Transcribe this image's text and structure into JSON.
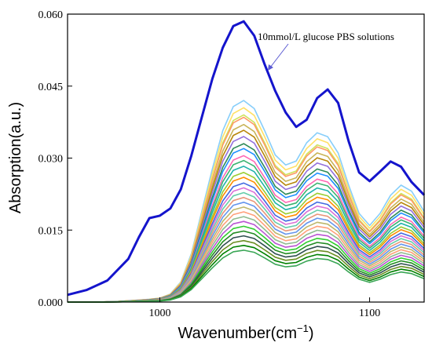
{
  "chart_data": {
    "type": "line",
    "title": "",
    "xlabel": "Wavenumber(cm",
    "xlabel_sup": "−1",
    "xlabel_close": ")",
    "ylabel": "Absorption(a.u.)",
    "xlim": [
      956,
      1126
    ],
    "ylim": [
      0,
      0.06
    ],
    "xticks": [
      1000,
      1100
    ],
    "yticks": [
      0.0,
      0.015,
      0.03,
      0.045,
      0.06
    ],
    "ytick_labels": [
      "0.000",
      "0.015",
      "0.030",
      "0.045",
      "0.060"
    ],
    "grid": false,
    "legend": "none",
    "annotation": {
      "text": "10mmol/L glucose PBS solutions",
      "points_to": [
        1040,
        0.0495
      ]
    },
    "reference_shape": {
      "x": [
        956,
        970,
        980,
        990,
        995,
        1000,
        1005,
        1010,
        1015,
        1020,
        1025,
        1030,
        1035,
        1040,
        1045,
        1050,
        1055,
        1060,
        1065,
        1070,
        1075,
        1080,
        1085,
        1090,
        1095,
        1100,
        1105,
        1110,
        1115,
        1120,
        1126
      ],
      "shape": [
        0.0,
        0.0,
        0.003,
        0.01,
        0.014,
        0.02,
        0.04,
        0.1,
        0.24,
        0.45,
        0.66,
        0.85,
        0.97,
        1.0,
        0.96,
        0.85,
        0.73,
        0.68,
        0.7,
        0.79,
        0.84,
        0.82,
        0.74,
        0.58,
        0.44,
        0.38,
        0.44,
        0.53,
        0.58,
        0.55,
        0.45
      ]
    },
    "series": [
      {
        "color": "#1414cc",
        "x": [
          956,
          965,
          975,
          985,
          990,
          995,
          1000,
          1005,
          1010,
          1015,
          1020,
          1025,
          1030,
          1035,
          1040,
          1045,
          1050,
          1055,
          1060,
          1065,
          1070,
          1075,
          1080,
          1085,
          1090,
          1095,
          1100,
          1105,
          1110,
          1115,
          1120,
          1126
        ],
        "values": [
          0.0015,
          0.0025,
          0.0045,
          0.009,
          0.0135,
          0.0175,
          0.018,
          0.0195,
          0.0235,
          0.0305,
          0.0385,
          0.0465,
          0.053,
          0.0575,
          0.0585,
          0.0555,
          0.0495,
          0.044,
          0.0395,
          0.0365,
          0.038,
          0.0425,
          0.0443,
          0.0415,
          0.0335,
          0.027,
          0.0252,
          0.0272,
          0.0293,
          0.0282,
          0.025,
          0.0223
        ]
      },
      {
        "color": "#87cefa",
        "peak": 0.042
      },
      {
        "color": "#ffe066",
        "peak": 0.0405
      },
      {
        "color": "#cfe35a",
        "peak": 0.039
      },
      {
        "color": "#ff9966",
        "peak": 0.0385
      },
      {
        "color": "#c9b458",
        "peak": 0.037
      },
      {
        "color": "#b8860b",
        "peak": 0.0358
      },
      {
        "color": "#9370db",
        "peak": 0.0345
      },
      {
        "color": "#2e8b57",
        "peak": 0.033
      },
      {
        "color": "#1e90ff",
        "peak": 0.032
      },
      {
        "color": "#ff69b4",
        "peak": 0.0305
      },
      {
        "color": "#3cb371",
        "peak": 0.0295
      },
      {
        "color": "#20b2aa",
        "peak": 0.0283
      },
      {
        "color": "#9acd32",
        "peak": 0.027
      },
      {
        "color": "#ff8c00",
        "peak": 0.026
      },
      {
        "color": "#4169e1",
        "peak": 0.0248
      },
      {
        "color": "#da70d6",
        "peak": 0.0238
      },
      {
        "color": "#66cdaa",
        "peak": 0.0228
      },
      {
        "color": "#e9967a",
        "peak": 0.0218
      },
      {
        "color": "#6495ed",
        "peak": 0.0208
      },
      {
        "color": "#bdb76b",
        "peak": 0.0198
      },
      {
        "color": "#ffa07a",
        "peak": 0.0188
      },
      {
        "color": "#8fbc8f",
        "peak": 0.0178
      },
      {
        "color": "#ba55d3",
        "peak": 0.0168
      },
      {
        "color": "#32cd32",
        "peak": 0.0158
      },
      {
        "color": "#228b22",
        "peak": 0.0148
      },
      {
        "color": "#2f4f4f",
        "peak": 0.0138
      },
      {
        "color": "#6b8e23",
        "peak": 0.0128
      },
      {
        "color": "#008000",
        "peak": 0.0118
      },
      {
        "color": "#3aa655",
        "peak": 0.0108
      }
    ]
  }
}
